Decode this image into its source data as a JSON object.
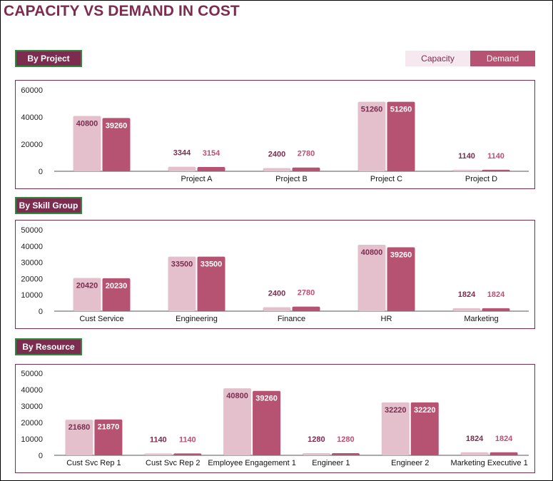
{
  "title": "CAPACITY VS DEMAND IN COST",
  "legend": {
    "capacity": "Capacity",
    "demand": "Demand"
  },
  "colors": {
    "capacity": "#e3c0cc",
    "demand": "#b65272",
    "accent": "#7b2c4f",
    "button_border": "#2f8a3e"
  },
  "chart_data": [
    {
      "type": "bar",
      "section_label": "By Project",
      "categories": [
        "",
        "Project A",
        "Project B",
        "Project C",
        "Project D"
      ],
      "series": [
        {
          "name": "Capacity",
          "values": [
            40800,
            3344,
            2400,
            51260,
            1140
          ]
        },
        {
          "name": "Demand",
          "values": [
            39260,
            3154,
            2780,
            51260,
            1140
          ]
        }
      ],
      "yticks": [
        0,
        20000,
        40000,
        60000
      ],
      "ylim": [
        0,
        60000
      ]
    },
    {
      "type": "bar",
      "section_label": "By Skill Group",
      "categories": [
        "Cust Service",
        "Engineering",
        "Finance",
        "HR",
        "Marketing"
      ],
      "series": [
        {
          "name": "Capacity",
          "values": [
            20420,
            33500,
            2400,
            40800,
            1824
          ]
        },
        {
          "name": "Demand",
          "values": [
            20230,
            33500,
            2780,
            39260,
            1824
          ]
        }
      ],
      "yticks": [
        0,
        10000,
        20000,
        30000,
        40000,
        50000
      ],
      "ylim": [
        0,
        50000
      ]
    },
    {
      "type": "bar",
      "section_label": "By Resource",
      "categories": [
        "Cust Svc Rep 1",
        "Cust Svc Rep 2",
        "Employee Engagement 1",
        "Engineer 1",
        "Engineer 2",
        "Marketing Executive 1"
      ],
      "series": [
        {
          "name": "Capacity",
          "values": [
            21680,
            1140,
            40800,
            1280,
            32220,
            1824
          ]
        },
        {
          "name": "Demand",
          "values": [
            21870,
            1140,
            39260,
            1280,
            32220,
            1824
          ]
        }
      ],
      "yticks": [
        0,
        10000,
        20000,
        30000,
        40000,
        50000
      ],
      "ylim": [
        0,
        50000
      ]
    }
  ]
}
